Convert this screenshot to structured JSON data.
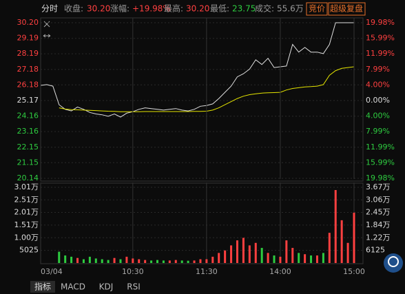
{
  "header": {
    "tab": "分时",
    "close_label": "收盘:",
    "close": "30.20",
    "change_label": "涨幅:",
    "change": "+19.98%",
    "high_label": "最高:",
    "high": "30.20",
    "low_label": "最低:",
    "low": "23.75",
    "volume_label": "成交:",
    "volume": "55.6万",
    "buttons": [
      "竞价",
      "超级复盘"
    ]
  },
  "tabs": [
    "指标",
    "MACD",
    "KDJ",
    "RSI"
  ],
  "chart_data": [
    {
      "type": "line",
      "xlim": [
        -15,
        240
      ],
      "x": [
        -15,
        -10,
        -5,
        0,
        5,
        10,
        15,
        20,
        25,
        30,
        35,
        40,
        45,
        50,
        55,
        60,
        65,
        70,
        75,
        80,
        85,
        90,
        95,
        100,
        105,
        110,
        115,
        120,
        125,
        130,
        135,
        140,
        145,
        150,
        155,
        160,
        165,
        170,
        175,
        180,
        185,
        190,
        195,
        200,
        205,
        210,
        215,
        220,
        225,
        230,
        235,
        240
      ],
      "ylim": [
        20.14,
        30.2
      ],
      "yticks": [
        {
          "value": 30.2,
          "label": "30.20"
        },
        29.19,
        28.19,
        27.18,
        26.18,
        25.17,
        24.16,
        23.16,
        22.15,
        21.15,
        20.14
      ],
      "y2lim": [
        -19.98,
        19.98
      ],
      "y2ticks": [
        {
          "value": 19.98,
          "label": "19.98%"
        },
        {
          "value": 15.99,
          "label": "15.99%"
        },
        {
          "value": 11.99,
          "label": "11.99%"
        },
        {
          "value": 7.99,
          "label": "7.99%"
        },
        {
          "value": 4.0,
          "label": "4.00%"
        },
        {
          "value": 0,
          "label": "0.00%"
        },
        {
          "value": -4.0,
          "label": "4.00%"
        },
        {
          "value": -7.99,
          "label": "7.99%"
        },
        {
          "value": -11.99,
          "label": "11.99%"
        },
        {
          "value": -15.99,
          "label": "15.99%"
        },
        {
          "value": -19.98,
          "label": "19.98%"
        }
      ],
      "up_color": "#ff4040",
      "down_color": "#2ecc40",
      "series": [
        {
          "color": "#e0e0e0",
          "values": [
            26.15,
            26.2,
            26.1,
            24.9,
            24.6,
            24.5,
            24.75,
            24.6,
            24.4,
            24.3,
            24.25,
            24.15,
            24.3,
            24.1,
            24.35,
            24.45,
            24.6,
            24.7,
            24.65,
            24.6,
            24.55,
            24.6,
            24.65,
            24.55,
            24.5,
            24.6,
            24.8,
            24.85,
            24.95,
            25.3,
            25.7,
            26.1,
            26.7,
            26.9,
            27.2,
            27.8,
            27.5,
            27.9,
            27.3,
            27.35,
            27.4,
            28.8,
            28.3,
            28.6,
            28.3,
            28.3,
            28.2,
            28.8,
            30.2,
            30.2,
            30.2,
            30.2
          ]
        },
        {
          "color": "#e6e600",
          "values": [
            null,
            null,
            null,
            24.7,
            24.62,
            24.58,
            24.57,
            24.55,
            24.54,
            24.52,
            24.5,
            24.48,
            24.47,
            24.45,
            24.45,
            24.45,
            24.45,
            24.46,
            24.46,
            24.46,
            24.46,
            24.46,
            24.46,
            24.46,
            24.46,
            24.47,
            24.47,
            24.48,
            24.55,
            24.7,
            24.9,
            25.1,
            25.3,
            25.45,
            25.55,
            25.6,
            25.65,
            25.67,
            25.68,
            25.7,
            25.85,
            25.95,
            26.0,
            26.05,
            26.07,
            26.1,
            26.2,
            26.8,
            27.1,
            27.25,
            27.3,
            27.35
          ]
        }
      ]
    },
    {
      "type": "bar",
      "xlim": [
        -15,
        240
      ],
      "x": [
        -15,
        -10,
        -5,
        0,
        5,
        10,
        15,
        20,
        25,
        30,
        35,
        40,
        45,
        50,
        55,
        60,
        65,
        70,
        75,
        80,
        85,
        90,
        95,
        100,
        105,
        110,
        115,
        120,
        125,
        130,
        135,
        140,
        145,
        150,
        155,
        160,
        165,
        170,
        175,
        180,
        185,
        190,
        195,
        200,
        205,
        210,
        215,
        220,
        225,
        230,
        235,
        240
      ],
      "values": [
        null,
        null,
        null,
        4500,
        3000,
        2500,
        2000,
        1500,
        2500,
        1800,
        1500,
        1200,
        2000,
        1500,
        2500,
        1800,
        1500,
        1200,
        1000,
        1200,
        1000,
        1000,
        1200,
        1000,
        900,
        1000,
        1500,
        1500,
        2500,
        4000,
        5000,
        7000,
        9000,
        10000,
        7000,
        8000,
        6000,
        4000,
        3000,
        2500,
        9000,
        6000,
        4000,
        3500,
        3000,
        3000,
        4000,
        12000,
        29000,
        17000,
        8000,
        20000
      ],
      "xticks": [
        {
          "value": -15,
          "label": "03/04"
        },
        {
          "value": 60,
          "label": "10:30"
        },
        {
          "value": 120,
          "label": "11:30"
        },
        {
          "value": 180,
          "label": "14:00"
        },
        {
          "value": 240,
          "label": "15:00"
        }
      ],
      "ylim": [
        0,
        30100
      ],
      "yticks": [
        5025,
        {
          "value": 10050,
          "label": "1.00万"
        },
        {
          "value": 15100,
          "label": "1.51万"
        },
        {
          "value": 20100,
          "label": "2.01万"
        },
        {
          "value": 25100,
          "label": "2.51万"
        },
        {
          "value": 30100,
          "label": "3.01万"
        }
      ],
      "y2lim": [
        0,
        36700
      ],
      "y2ticks": [
        6125,
        {
          "value": 12200,
          "label": "1.22万"
        },
        {
          "value": 18400,
          "label": "1.84万"
        },
        {
          "value": 24500,
          "label": "2.45万"
        },
        {
          "value": 30600,
          "label": "3.06万"
        },
        {
          "value": 36700,
          "label": "3.67万"
        }
      ]
    }
  ]
}
